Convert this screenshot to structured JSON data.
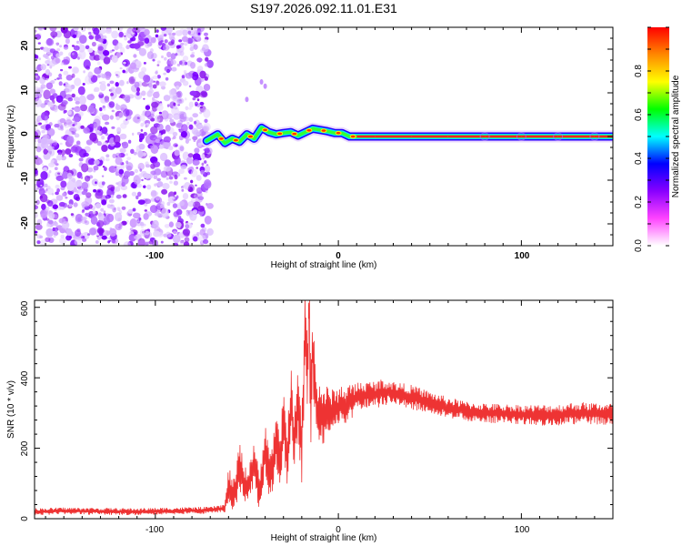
{
  "chart_data": [
    {
      "type": "heatmap",
      "title": "S197.2026.092.11.01.E31",
      "xlabel": "Height of straight line (km)",
      "ylabel": "Frequency (Hz)",
      "xlim": [
        -166,
        150
      ],
      "ylim": [
        -25,
        25
      ],
      "x_ticks": [
        "-100",
        "0",
        "100"
      ],
      "x_tick_values": [
        -100,
        0,
        100
      ],
      "y_ticks": [
        "-20",
        "-10",
        "0",
        "10",
        "20"
      ],
      "y_tick_values": [
        -20,
        -10,
        0,
        10,
        20
      ],
      "noise_region_x": [
        -166,
        -70
      ],
      "signal_track": {
        "x": [
          -72,
          -66,
          -62,
          -58,
          -54,
          -50,
          -46,
          -42,
          -38,
          -34,
          -30,
          -26,
          -22,
          -18,
          -14,
          -10,
          -6,
          -2,
          2,
          6,
          10,
          20,
          40,
          60,
          80,
          100,
          120,
          140,
          150
        ],
        "freq": [
          -1.0,
          0.5,
          -1.5,
          -0.5,
          -1.2,
          0.5,
          -0.5,
          2.0,
          1.0,
          0.5,
          0.8,
          1.0,
          0.2,
          1.0,
          1.8,
          1.5,
          1.2,
          0.8,
          0.8,
          0.0,
          0.0,
          0.0,
          0.0,
          0.0,
          0.0,
          0.0,
          0.0,
          0.0,
          0.0
        ]
      },
      "colorbar": {
        "label": "Normalized spectral amplitude",
        "ticks": [
          "0.0",
          "0.2",
          "0.4",
          "0.6",
          "0.8"
        ],
        "tick_values": [
          0.0,
          0.2,
          0.4,
          0.6,
          0.8
        ],
        "range": [
          0,
          1
        ],
        "colors": [
          "#ffffff",
          "#ff44ff",
          "#8800ff",
          "#0000ff",
          "#00ffff",
          "#00ff00",
          "#ffff00",
          "#ff8800",
          "#ff0000"
        ]
      }
    },
    {
      "type": "line",
      "title": "",
      "xlabel": "Height of straight line (km)",
      "ylabel": "SNR (10 * v/v)",
      "xlim": [
        -166,
        150
      ],
      "ylim": [
        0,
        620
      ],
      "x_ticks": [
        "-100",
        "0",
        "100"
      ],
      "x_tick_values": [
        -100,
        0,
        100
      ],
      "y_ticks": [
        "0",
        "200",
        "400",
        "600"
      ],
      "y_tick_values": [
        0,
        200,
        400,
        600
      ],
      "series": [
        {
          "name": "SNR",
          "color": "#ee3333",
          "x": [
            -166,
            -150,
            -130,
            -110,
            -90,
            -70,
            -62,
            -60,
            -57,
            -54,
            -50,
            -46,
            -43,
            -40,
            -37,
            -34,
            -32,
            -30,
            -28,
            -26,
            -24,
            -22,
            -20,
            -18,
            -17,
            -16,
            -15,
            -14,
            -12,
            -10,
            -8,
            -6,
            -4,
            -2,
            0,
            2,
            4,
            6,
            8,
            10,
            15,
            20,
            25,
            30,
            35,
            40,
            50,
            60,
            70,
            80,
            90,
            100,
            110,
            120,
            130,
            140,
            150
          ],
          "values": [
            20,
            22,
            21,
            20,
            22,
            24,
            30,
            90,
            60,
            150,
            80,
            160,
            70,
            210,
            110,
            230,
            140,
            280,
            160,
            340,
            210,
            330,
            200,
            560,
            380,
            610,
            300,
            490,
            310,
            300,
            290,
            310,
            300,
            320,
            310,
            330,
            320,
            335,
            330,
            345,
            350,
            352,
            360,
            355,
            350,
            345,
            330,
            315,
            305,
            300,
            298,
            296,
            294,
            295,
            300,
            298,
            297
          ],
          "noise_amplitude": [
            10,
            10,
            10,
            10,
            10,
            10,
            12,
            60,
            50,
            70,
            50,
            70,
            50,
            80,
            70,
            90,
            80,
            90,
            90,
            100,
            100,
            100,
            100,
            140,
            120,
            140,
            120,
            120,
            100,
            90,
            80,
            70,
            60,
            60,
            55,
            55,
            50,
            50,
            50,
            45,
            40,
            40,
            38,
            36,
            35,
            35,
            32,
            30,
            28,
            28,
            28,
            28,
            30,
            30,
            32,
            32,
            32
          ]
        }
      ]
    }
  ]
}
